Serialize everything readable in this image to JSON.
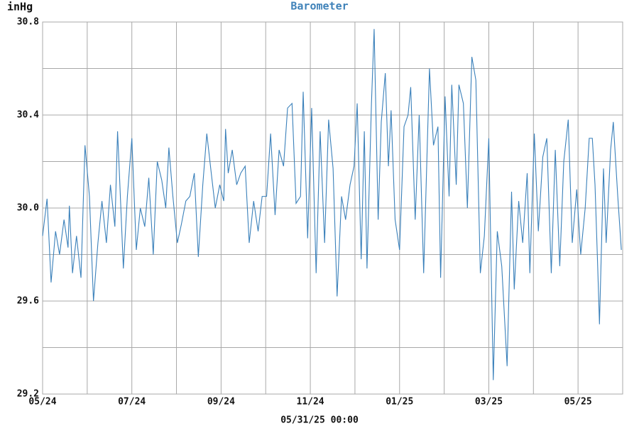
{
  "chart_data": {
    "type": "line",
    "title": "Barometer",
    "y_label": "inHg",
    "x_label": "05/31/25 00:00",
    "color": "#3a80ba",
    "grid": true,
    "xlim": [
      0,
      13
    ],
    "xticks": [
      {
        "value": 0,
        "label": "05/24"
      },
      {
        "value": 2,
        "label": "07/24"
      },
      {
        "value": 4,
        "label": "09/24"
      },
      {
        "value": 6,
        "label": "11/24"
      },
      {
        "value": 8,
        "label": "01/25"
      },
      {
        "value": 10,
        "label": "03/25"
      },
      {
        "value": 12,
        "label": "05/25"
      }
    ],
    "x_minor_ticks": [
      1,
      3,
      5,
      7,
      9,
      11,
      13
    ],
    "ylim": [
      29.2,
      30.8
    ],
    "yticks": [
      29.2,
      29.6,
      {
        "value": 30,
        "label": "30.0"
      },
      30.4,
      30.8
    ],
    "y_minor_ticks": [
      29.4,
      29.8,
      30.2,
      30.6
    ],
    "x": [
      0,
      0.1,
      0.19,
      0.29,
      0.38,
      0.48,
      0.57,
      0.6,
      0.67,
      0.76,
      0.86,
      0.95,
      1.05,
      1.14,
      1.24,
      1.33,
      1.43,
      1.52,
      1.62,
      1.68,
      1.71,
      1.81,
      1.9,
      2.0,
      2.1,
      2.19,
      2.29,
      2.38,
      2.48,
      2.57,
      2.67,
      2.76,
      2.83,
      2.92,
      3.02,
      3.11,
      3.21,
      3.3,
      3.4,
      3.49,
      3.59,
      3.68,
      3.78,
      3.87,
      3.97,
      4.06,
      4.1,
      4.16,
      4.25,
      4.35,
      4.44,
      4.54,
      4.63,
      4.73,
      4.83,
      4.92,
      5.02,
      5.11,
      5.21,
      5.3,
      5.4,
      5.49,
      5.59,
      5.68,
      5.78,
      5.84,
      5.94,
      6.03,
      6.13,
      6.22,
      6.32,
      6.41,
      6.51,
      6.6,
      6.7,
      6.79,
      6.89,
      6.98,
      7.05,
      7.14,
      7.21,
      7.27,
      7.37,
      7.43,
      7.52,
      7.59,
      7.68,
      7.75,
      7.81,
      7.9,
      8.0,
      8.1,
      8.19,
      8.25,
      8.35,
      8.44,
      8.54,
      8.67,
      8.76,
      8.86,
      8.92,
      9.02,
      9.11,
      9.17,
      9.27,
      9.33,
      9.43,
      9.52,
      9.62,
      9.71,
      9.81,
      9.9,
      10.0,
      10.1,
      10.19,
      10.29,
      10.41,
      10.51,
      10.57,
      10.67,
      10.76,
      10.86,
      10.92,
      11.02,
      11.11,
      11.21,
      11.3,
      11.4,
      11.49,
      11.59,
      11.68,
      11.78,
      11.87,
      11.97,
      12.06,
      12.16,
      12.25,
      12.32,
      12.38,
      12.44,
      12.48,
      12.57,
      12.63,
      12.73,
      12.79,
      12.89,
      12.97
    ],
    "values": [
      29.88,
      30.04,
      29.68,
      29.9,
      29.8,
      29.95,
      29.83,
      30.01,
      29.72,
      29.88,
      29.7,
      30.27,
      30.05,
      29.6,
      29.85,
      30.03,
      29.85,
      30.1,
      29.92,
      30.33,
      30.2,
      29.74,
      30.05,
      30.3,
      29.82,
      30.0,
      29.92,
      30.13,
      29.8,
      30.2,
      30.12,
      30.0,
      30.26,
      30.05,
      29.85,
      29.93,
      30.03,
      30.05,
      30.15,
      29.79,
      30.1,
      30.32,
      30.15,
      30.0,
      30.1,
      30.03,
      30.34,
      30.15,
      30.25,
      30.1,
      30.15,
      30.18,
      29.85,
      30.03,
      29.9,
      30.05,
      30.05,
      30.32,
      29.97,
      30.25,
      30.18,
      30.43,
      30.45,
      30.02,
      30.05,
      30.5,
      29.87,
      30.43,
      29.72,
      30.33,
      29.85,
      30.38,
      30.17,
      29.62,
      30.05,
      29.95,
      30.1,
      30.18,
      30.45,
      29.78,
      30.33,
      29.74,
      30.45,
      30.77,
      29.95,
      30.37,
      30.58,
      30.18,
      30.42,
      29.95,
      29.82,
      30.35,
      30.4,
      30.52,
      29.95,
      30.4,
      29.72,
      30.6,
      30.27,
      30.35,
      29.7,
      30.48,
      30.05,
      30.53,
      30.1,
      30.53,
      30.45,
      30.0,
      30.65,
      30.55,
      29.72,
      29.88,
      30.3,
      29.26,
      29.9,
      29.75,
      29.32,
      30.07,
      29.65,
      30.03,
      29.85,
      30.15,
      29.72,
      30.32,
      29.9,
      30.22,
      30.3,
      29.72,
      30.25,
      29.75,
      30.2,
      30.38,
      29.85,
      30.08,
      29.8,
      30.0,
      30.3,
      30.3,
      30.1,
      29.75,
      29.5,
      30.17,
      29.85,
      30.25,
      30.37,
      30.05,
      29.82
    ]
  }
}
